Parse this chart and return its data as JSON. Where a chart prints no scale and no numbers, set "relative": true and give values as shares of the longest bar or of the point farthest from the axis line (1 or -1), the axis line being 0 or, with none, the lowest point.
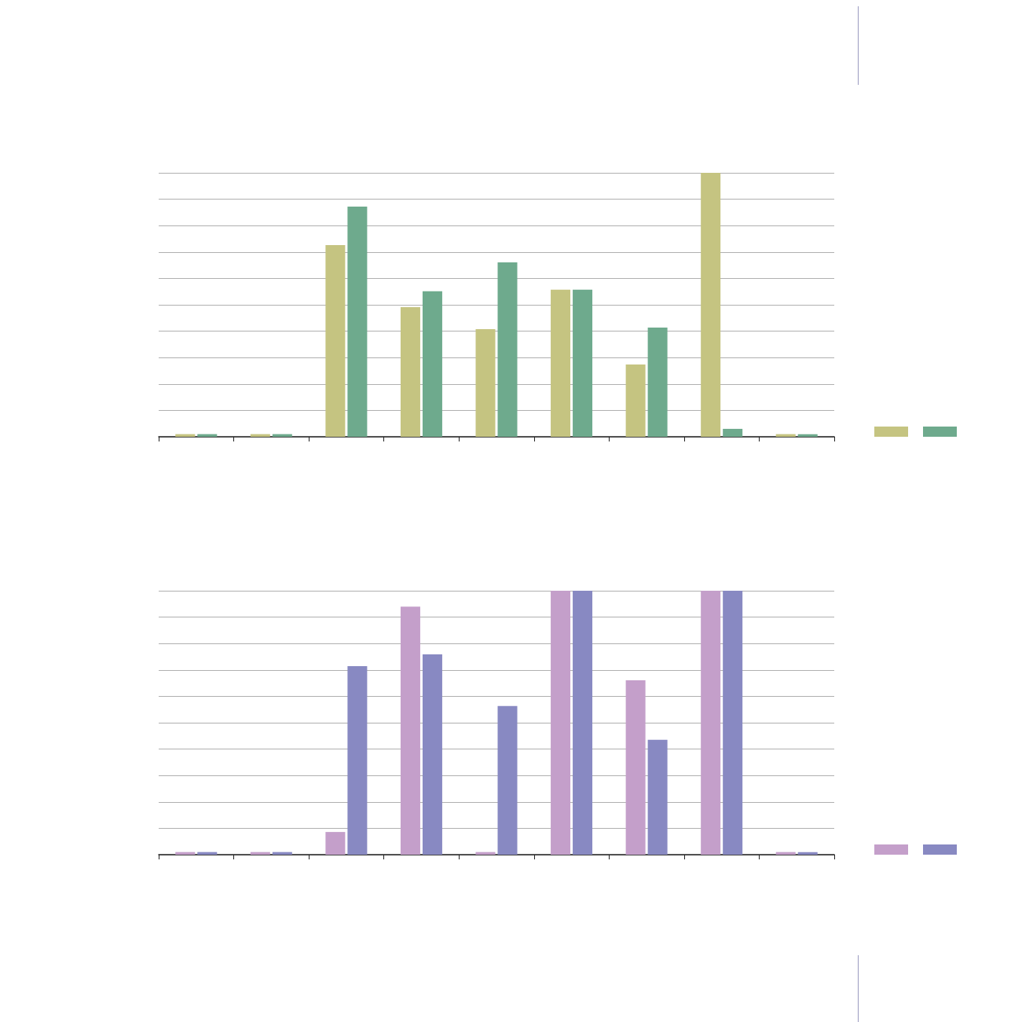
{
  "chart_data": [
    {
      "type": "bar",
      "relative": true,
      "grid": "y",
      "categories": [
        null,
        null,
        null,
        null,
        null,
        null,
        null,
        null,
        null
      ],
      "series": [
        {
          "color": "#c5c481",
          "values": [
            0.01,
            0.01,
            0.726,
            0.491,
            0.408,
            0.557,
            0.274,
            1,
            0.01
          ]
        },
        {
          "color": "#6eaa8d",
          "values": [
            0.01,
            0.01,
            0.872,
            0.551,
            0.661,
            0.557,
            0.414,
            0.03,
            0.01
          ]
        }
      ]
    },
    {
      "type": "bar",
      "relative": true,
      "grid": "y",
      "categories": [
        null,
        null,
        null,
        null,
        null,
        null,
        null,
        null,
        null
      ],
      "series": [
        {
          "color": "#c49fca",
          "values": [
            0.01,
            0.01,
            0.086,
            0.94,
            0.01,
            1,
            0.661,
            1,
            0.01
          ]
        },
        {
          "color": "#8889c2",
          "values": [
            0.01,
            0.01,
            0.714,
            0.759,
            0.563,
            1,
            0.435,
            1,
            0.01
          ]
        }
      ]
    }
  ]
}
